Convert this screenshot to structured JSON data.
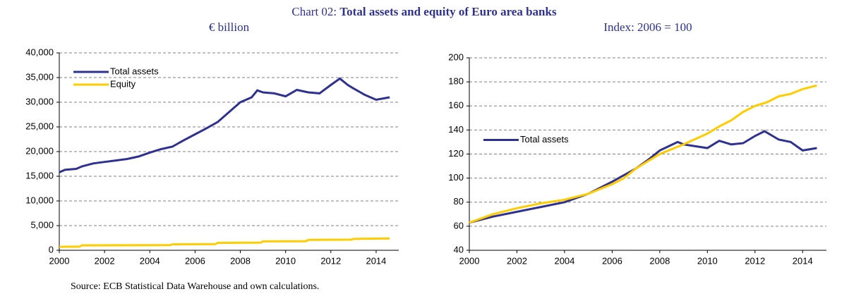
{
  "title_prefix": "Chart 02:",
  "title": "Total assets and equity of Euro area banks",
  "source": "Source: ECB Statistical Data Warehouse and own calculations.",
  "chart_data": [
    {
      "type": "line",
      "subtitle": "€ billion",
      "legend": "upper left",
      "grid": true,
      "xlim": [
        2000,
        2015
      ],
      "xticks": [
        2000,
        2002,
        2004,
        2006,
        2008,
        2010,
        2012,
        2014
      ],
      "ylim": [
        0,
        40000
      ],
      "yticks": [
        0,
        {
          "value": 5000,
          "label": "5,000"
        },
        {
          "value": 10000,
          "label": "10,000"
        },
        {
          "value": 15000,
          "label": "15,000"
        },
        {
          "value": 20000,
          "label": "20,000"
        },
        {
          "value": 25000,
          "label": "25,000"
        },
        {
          "value": 30000,
          "label": "30,000"
        },
        {
          "value": 35000,
          "label": "35,000"
        },
        {
          "value": 40000,
          "label": "40,000"
        }
      ],
      "series": [
        {
          "name": "Total assets",
          "color": "#2e3192",
          "x": [
            2000,
            2000.25,
            2000.75,
            2001,
            2001.5,
            2002,
            2002.5,
            2003,
            2003.5,
            2004,
            2004.5,
            2005,
            2005.5,
            2006,
            2006.5,
            2007,
            2007.5,
            2008,
            2008.5,
            2008.75,
            2009,
            2009.5,
            2010,
            2010.5,
            2011,
            2011.5,
            2012,
            2012.4,
            2012.75,
            2013,
            2013.5,
            2014,
            2014.6
          ],
          "values": [
            15800,
            16300,
            16500,
            17000,
            17600,
            17900,
            18200,
            18500,
            19000,
            19800,
            20500,
            21000,
            22300,
            23500,
            24700,
            26000,
            28000,
            30000,
            31000,
            32400,
            32000,
            31800,
            31200,
            32500,
            32000,
            31800,
            33500,
            34800,
            33500,
            32800,
            31500,
            30500,
            31000
          ]
        },
        {
          "name": "Equity",
          "color": "#ffcc00",
          "x": [
            2000,
            2000.9,
            2001,
            2004.9,
            2005,
            2006.9,
            2007,
            2008.9,
            2009,
            2010.9,
            2011,
            2012.9,
            2013,
            2014.6
          ],
          "values": [
            700,
            750,
            1000,
            1050,
            1200,
            1250,
            1500,
            1550,
            1800,
            1850,
            2100,
            2150,
            2300,
            2400
          ]
        }
      ]
    },
    {
      "type": "line",
      "subtitle": "Index: 2006 = 100",
      "legend": "center left",
      "grid": true,
      "xlim": [
        2000,
        2015
      ],
      "xticks": [
        2000,
        2002,
        2004,
        2006,
        2008,
        2010,
        2012,
        2014
      ],
      "ylim": [
        40,
        200
      ],
      "yticks": [
        40,
        60,
        80,
        100,
        120,
        140,
        160,
        180,
        200
      ],
      "series": [
        {
          "name": "Total assets",
          "color": "#2e3192",
          "x": [
            2000,
            2001,
            2002,
            2003,
            2004,
            2005,
            2006,
            2007,
            2007.5,
            2008,
            2008.75,
            2009,
            2010,
            2010.5,
            2011,
            2011.5,
            2012,
            2012.4,
            2013,
            2013.5,
            2014,
            2014.6
          ],
          "values": [
            63,
            68,
            72,
            76,
            80,
            87,
            97,
            108,
            115,
            123,
            130,
            128,
            125,
            131,
            128,
            129,
            135,
            139,
            132,
            130,
            123,
            125
          ]
        },
        {
          "color": "#ffcc00",
          "x": [
            2000,
            2001,
            2002,
            2003,
            2004,
            2005,
            2006,
            2006.5,
            2007,
            2008,
            2009,
            2010,
            2010.5,
            2011,
            2011.5,
            2012,
            2012.5,
            2013,
            2013.5,
            2014,
            2014.6
          ],
          "values": [
            63,
            70,
            75,
            79,
            82,
            87,
            95,
            100,
            108,
            120,
            128,
            137,
            143,
            148,
            155,
            160,
            163,
            168,
            170,
            174,
            177
          ]
        }
      ]
    }
  ]
}
